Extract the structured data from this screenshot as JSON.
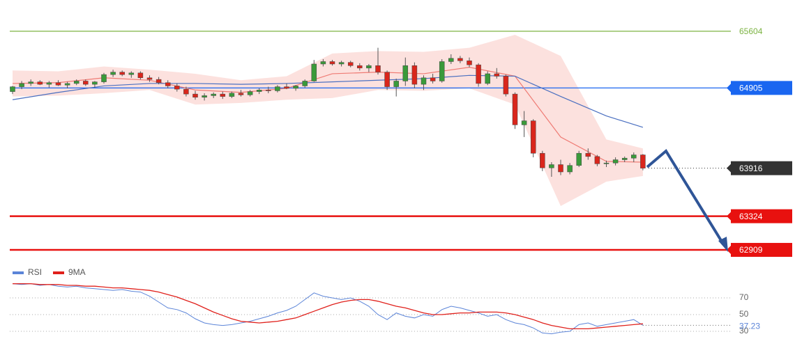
{
  "chart_data": [
    {
      "type": "candlestick",
      "ylim": [
        62772,
        65989
      ],
      "up_color": "#3a9a3a",
      "down_color": "#d9261c",
      "candles": [
        [
          64860,
          64930,
          64830,
          64920
        ],
        [
          64920,
          64990,
          64890,
          64960
        ],
        [
          64960,
          65010,
          64930,
          64980
        ],
        [
          64980,
          65000,
          64940,
          64950
        ],
        [
          64950,
          64990,
          64910,
          64970
        ],
        [
          64970,
          65000,
          64930,
          64940
        ],
        [
          64940,
          64980,
          64900,
          64960
        ],
        [
          64960,
          65010,
          64940,
          64990
        ],
        [
          64990,
          65010,
          64930,
          64950
        ],
        [
          64950,
          64990,
          64910,
          64980
        ],
        [
          64980,
          65090,
          64960,
          65070
        ],
        [
          65070,
          65130,
          65040,
          65100
        ],
        [
          65100,
          65120,
          65050,
          65070
        ],
        [
          65070,
          65110,
          65030,
          65090
        ],
        [
          65090,
          65110,
          65010,
          65030
        ],
        [
          65030,
          65060,
          64980,
          65010
        ],
        [
          65010,
          65040,
          64950,
          64970
        ],
        [
          64970,
          65000,
          64900,
          64930
        ],
        [
          64930,
          64960,
          64860,
          64890
        ],
        [
          64890,
          64920,
          64800,
          64830
        ],
        [
          64830,
          64870,
          64760,
          64790
        ],
        [
          64790,
          64840,
          64750,
          64810
        ],
        [
          64810,
          64850,
          64780,
          64830
        ],
        [
          64830,
          64860,
          64770,
          64800
        ],
        [
          64800,
          64860,
          64780,
          64840
        ],
        [
          64840,
          64880,
          64800,
          64820
        ],
        [
          64820,
          64880,
          64800,
          64860
        ],
        [
          64860,
          64900,
          64830,
          64880
        ],
        [
          64880,
          64920,
          64840,
          64870
        ],
        [
          64870,
          64940,
          64850,
          64920
        ],
        [
          64920,
          64960,
          64890,
          64900
        ],
        [
          64900,
          64940,
          64870,
          64930
        ],
        [
          64930,
          65010,
          64910,
          64990
        ],
        [
          64990,
          65250,
          64980,
          65200
        ],
        [
          65200,
          65260,
          65170,
          65230
        ],
        [
          65230,
          65250,
          65180,
          65200
        ],
        [
          65200,
          65240,
          65170,
          65220
        ],
        [
          65220,
          65240,
          65160,
          65180
        ],
        [
          65180,
          65210,
          65120,
          65150
        ],
        [
          65150,
          65200,
          65100,
          65180
        ],
        [
          65180,
          65400,
          65070,
          65100
        ],
        [
          65100,
          65120,
          64880,
          64920
        ],
        [
          64920,
          65020,
          64800,
          64990
        ],
        [
          64990,
          65280,
          64930,
          65180
        ],
        [
          65180,
          65220,
          64900,
          64950
        ],
        [
          64950,
          65060,
          64880,
          65030
        ],
        [
          65030,
          65080,
          64960,
          64990
        ],
        [
          64990,
          65260,
          64970,
          65230
        ],
        [
          65230,
          65320,
          65200,
          65270
        ],
        [
          65270,
          65300,
          65210,
          65240
        ],
        [
          65240,
          65280,
          65160,
          65190
        ],
        [
          65190,
          65210,
          64920,
          64960
        ],
        [
          64960,
          65110,
          64940,
          65080
        ],
        [
          65080,
          65150,
          65020,
          65050
        ],
        [
          65050,
          65070,
          64800,
          64830
        ],
        [
          64830,
          64850,
          64400,
          64450
        ],
        [
          64450,
          64620,
          64300,
          64500
        ],
        [
          64500,
          64520,
          64050,
          64100
        ],
        [
          64100,
          64130,
          63880,
          63920
        ],
        [
          63920,
          63990,
          63810,
          63960
        ],
        [
          63960,
          64020,
          63830,
          63870
        ],
        [
          63870,
          63980,
          63840,
          63950
        ],
        [
          63950,
          64130,
          63930,
          64100
        ],
        [
          64100,
          64160,
          64020,
          64060
        ],
        [
          64060,
          64080,
          63940,
          63970
        ],
        [
          63970,
          64010,
          63930,
          63980
        ],
        [
          63980,
          64050,
          63950,
          64020
        ],
        [
          64020,
          64060,
          63990,
          64040
        ],
        [
          64040,
          64110,
          63990,
          64080
        ],
        [
          64080,
          64090,
          63890,
          63916
        ]
      ],
      "bands": {
        "color": "#fbd9d6",
        "x": [
          0,
          5,
          10,
          15,
          20,
          25,
          30,
          35,
          40,
          45,
          50,
          55,
          60,
          65,
          69
        ],
        "upper": [
          65120,
          65110,
          65170,
          65130,
          65080,
          65000,
          65050,
          65330,
          65360,
          65350,
          65400,
          65560,
          65300,
          64270,
          64160
        ],
        "lower": [
          64800,
          64810,
          64840,
          64880,
          64700,
          64720,
          64760,
          64780,
          64880,
          64870,
          64900,
          64700,
          63450,
          63750,
          63820
        ]
      },
      "overlays": [
        {
          "color": "#ef7b74",
          "x": [
            0,
            5,
            10,
            15,
            20,
            25,
            30,
            35,
            40,
            45,
            50,
            55,
            60,
            65,
            69
          ],
          "values": [
            64960,
            64970,
            65030,
            65000,
            64880,
            64850,
            64900,
            65080,
            65100,
            65080,
            65160,
            65050,
            64300,
            64000,
            63990
          ]
        },
        {
          "color": "#4a6fc0",
          "x": [
            0,
            5,
            10,
            15,
            20,
            25,
            30,
            35,
            40,
            45,
            50,
            55,
            60,
            65,
            69
          ],
          "values": [
            64760,
            64850,
            64930,
            64960,
            64960,
            64950,
            64960,
            64980,
            65000,
            65020,
            65060,
            65050,
            64800,
            64560,
            64420
          ]
        }
      ],
      "levels": [
        {
          "value": 65604,
          "color": "#7cb342",
          "box": false,
          "line": "solid"
        },
        {
          "value": 64905,
          "color": "#1a66f0",
          "box": true,
          "line": "solid"
        },
        {
          "value": 63916,
          "color": "#333333",
          "box": true,
          "line": "dotted"
        },
        {
          "value": 63324,
          "color": "#e8110f",
          "box": true,
          "line": "solid"
        },
        {
          "value": 62909,
          "color": "#e8110f",
          "box": true,
          "line": "solid"
        }
      ]
    },
    {
      "type": "line",
      "ylim": [
        10,
        106
      ],
      "yticks": [
        70,
        50,
        30
      ],
      "series": [
        {
          "name": "RSI",
          "color": "#5b84d8",
          "values": [
            87,
            86,
            87,
            85,
            86,
            84,
            83,
            84,
            82,
            81,
            80,
            79,
            80,
            78,
            77,
            72,
            65,
            58,
            56,
            52,
            45,
            40,
            38,
            37,
            38,
            40,
            42,
            45,
            48,
            52,
            55,
            60,
            68,
            76,
            72,
            70,
            68,
            70,
            66,
            60,
            50,
            44,
            52,
            48,
            46,
            50,
            48,
            56,
            60,
            58,
            55,
            52,
            48,
            50,
            44,
            40,
            38,
            34,
            28,
            27,
            29,
            30,
            38,
            40,
            36,
            38,
            40,
            42,
            44,
            37.23
          ]
        },
        {
          "name": "9MA",
          "color": "#e0201b",
          "values": [
            87,
            87,
            87,
            86,
            86,
            86,
            85,
            85,
            84,
            84,
            83,
            82,
            82,
            81,
            80,
            79,
            77,
            74,
            71,
            67,
            63,
            58,
            53,
            49,
            45,
            42,
            41,
            40,
            41,
            42,
            44,
            46,
            50,
            54,
            58,
            62,
            65,
            67,
            68,
            68,
            66,
            63,
            60,
            58,
            55,
            52,
            50,
            50,
            51,
            52,
            52,
            53,
            53,
            53,
            52,
            50,
            47,
            44,
            40,
            37,
            35,
            33,
            33,
            33,
            34,
            35,
            36,
            37,
            38,
            39
          ]
        }
      ]
    }
  ]
}
